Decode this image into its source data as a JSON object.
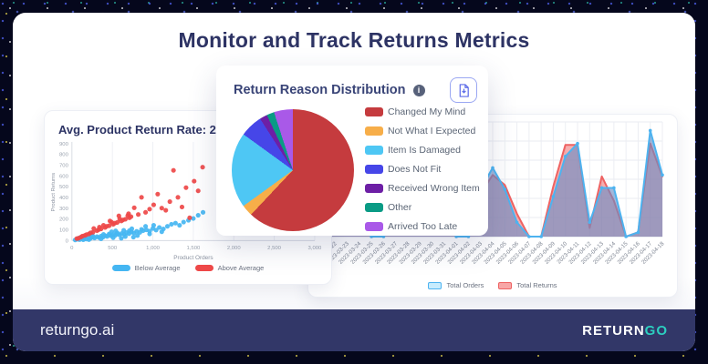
{
  "title": "Monitor and Track Returns Metrics",
  "footer": {
    "site": "returngo.ai",
    "brand_return": "RETURN",
    "brand_go": "GO",
    "brand_go_color": "#2ccfc0",
    "bar_color": "#323768"
  },
  "scatter_card": {
    "title": "Avg. Product Return Rate: 24.8%"
  },
  "pie_card": {
    "title": "Return Reason Distribution",
    "info_icon_glyph": "i"
  },
  "chart_data": [
    {
      "type": "scatter",
      "title": "Avg. Product Return Rate: 24.8%",
      "xlabel": "Product Orders",
      "ylabel": "Product Returns",
      "xlim": [
        0,
        3000
      ],
      "ylim": [
        0,
        900
      ],
      "xticks": [
        0,
        500,
        1000,
        1500,
        2000,
        2500,
        3000
      ],
      "xtick_labels": [
        "0",
        "500",
        "1,000",
        "1,500",
        "2,000",
        "2,500",
        "3,000"
      ],
      "yticks": [
        0,
        100,
        200,
        300,
        400,
        500,
        600,
        700,
        800,
        900
      ],
      "grid": "vertical-only",
      "legend_position": "bottom",
      "series": [
        {
          "name": "Below Average",
          "color": "#45b6f2",
          "points": [
            [
              40,
              6
            ],
            [
              70,
              12
            ],
            [
              95,
              9
            ],
            [
              120,
              18
            ],
            [
              150,
              22
            ],
            [
              175,
              14
            ],
            [
              205,
              26
            ],
            [
              230,
              20
            ],
            [
              255,
              32
            ],
            [
              280,
              24
            ],
            [
              310,
              36
            ],
            [
              335,
              28
            ],
            [
              360,
              42
            ],
            [
              385,
              32
            ],
            [
              410,
              46
            ],
            [
              435,
              38
            ],
            [
              460,
              52
            ],
            [
              485,
              44
            ],
            [
              510,
              56
            ],
            [
              535,
              48
            ],
            [
              560,
              62
            ],
            [
              585,
              54
            ],
            [
              615,
              66
            ],
            [
              645,
              58
            ],
            [
              675,
              74
            ],
            [
              705,
              64
            ],
            [
              735,
              80
            ],
            [
              765,
              70
            ],
            [
              800,
              86
            ],
            [
              840,
              76
            ],
            [
              880,
              92
            ],
            [
              920,
              100
            ],
            [
              960,
              88
            ],
            [
              1000,
              112
            ],
            [
              1040,
              98
            ],
            [
              1080,
              122
            ],
            [
              1130,
              108
            ],
            [
              1180,
              132
            ],
            [
              1230,
              152
            ],
            [
              1280,
              162
            ],
            [
              1330,
              142
            ],
            [
              1380,
              172
            ],
            [
              1440,
              188
            ],
            [
              1500,
              205
            ],
            [
              1560,
              235
            ],
            [
              1620,
              262
            ],
            [
              210,
              9
            ],
            [
              360,
              16
            ],
            [
              510,
              27
            ],
            [
              660,
              37
            ],
            [
              810,
              47
            ],
            [
              260,
              42
            ],
            [
              460,
              62
            ],
            [
              560,
              72
            ],
            [
              710,
              92
            ],
            [
              860,
              104
            ],
            [
              960,
              62
            ],
            [
              1110,
              82
            ],
            [
              610,
              22
            ],
            [
              760,
              32
            ],
            [
              910,
              132
            ],
            [
              1010,
              142
            ],
            [
              490,
              82
            ],
            [
              390,
              57
            ],
            [
              140,
              8
            ],
            [
              90,
              25
            ],
            [
              240,
              52
            ],
            [
              640,
              95
            ],
            [
              740,
              110
            ],
            [
              540,
              90
            ]
          ]
        },
        {
          "name": "Above Average",
          "color": "#ee4848",
          "points": [
            [
              60,
              18
            ],
            [
              110,
              32
            ],
            [
              160,
              48
            ],
            [
              210,
              62
            ],
            [
              260,
              78
            ],
            [
              310,
              92
            ],
            [
              360,
              108
            ],
            [
              410,
              122
            ],
            [
              460,
              138
            ],
            [
              510,
              152
            ],
            [
              560,
              168
            ],
            [
              610,
              182
            ],
            [
              660,
              198
            ],
            [
              710,
              212
            ],
            [
              130,
              42
            ],
            [
              230,
              72
            ],
            [
              330,
              102
            ],
            [
              430,
              132
            ],
            [
              530,
              162
            ],
            [
              630,
              192
            ],
            [
              730,
              222
            ],
            [
              390,
              142
            ],
            [
              490,
              172
            ],
            [
              590,
              202
            ],
            [
              690,
              232
            ],
            [
              270,
              112
            ],
            [
              470,
              182
            ],
            [
              770,
              305
            ],
            [
              820,
              242
            ],
            [
              860,
              402
            ],
            [
              910,
              262
            ],
            [
              960,
              292
            ],
            [
              1010,
              332
            ],
            [
              1060,
              432
            ],
            [
              1110,
              302
            ],
            [
              1160,
              282
            ],
            [
              1210,
              362
            ],
            [
              1255,
              652
            ],
            [
              1310,
              402
            ],
            [
              1360,
              312
            ],
            [
              1410,
              492
            ],
            [
              1455,
              212
            ],
            [
              1510,
              552
            ],
            [
              1560,
              462
            ],
            [
              1615,
              682
            ],
            [
              180,
              55
            ],
            [
              80,
              22
            ],
            [
              340,
              125
            ],
            [
              580,
              230
            ],
            [
              700,
              250
            ]
          ]
        }
      ]
    },
    {
      "type": "pie",
      "title": "Return Reason Distribution",
      "legend_position": "right",
      "slices": [
        {
          "label": "Changed My Mind",
          "value": 62,
          "color": "#c53b3e"
        },
        {
          "label": "Not What I Expected",
          "value": 3,
          "color": "#f7ae49"
        },
        {
          "label": "Item Is Damaged",
          "value": 20,
          "color": "#4ec7f4"
        },
        {
          "label": "Does Not Fit",
          "value": 6,
          "color": "#4646e8"
        },
        {
          "label": "Received Wrong Item",
          "value": 2,
          "color": "#6d1fa5"
        },
        {
          "label": "Other",
          "value": 2,
          "color": "#0a9b85"
        },
        {
          "label": "Arrived Too Late",
          "value": 5,
          "color": "#a959e8"
        }
      ]
    },
    {
      "type": "area",
      "x": [
        "2023-03-21",
        "2023-03-22",
        "2023-03-23",
        "2023-03-24",
        "2023-03-25",
        "2023-03-26",
        "2023-03-27",
        "2023-03-28",
        "2023-03-29",
        "2023-03-30",
        "2023-03-31",
        "2023-04-01",
        "2023-04-02",
        "2023-04-03",
        "2023-04-04",
        "2023-04-05",
        "2023-04-06",
        "2023-04-07",
        "2023-04-08",
        "2023-04-09",
        "2023-04-10",
        "2023-04-11",
        "2023-04-12",
        "2023-04-13",
        "2023-04-14",
        "2023-04-15",
        "2023-04-16",
        "2023-04-17",
        "2023-04-18"
      ],
      "ylim": [
        0,
        800
      ],
      "grid": true,
      "legend_position": "bottom",
      "series": [
        {
          "name": "Total Returns",
          "color": "#ee6262",
          "fill": "rgba(238,107,107,0.55)",
          "swatch_fill": "#f7a6a6",
          "markers": false,
          "values": [
            260,
            480,
            300,
            210,
            0,
            0,
            300,
            220,
            390,
            320,
            140,
            0,
            0,
            300,
            430,
            360,
            160,
            0,
            0,
            350,
            640,
            640,
            60,
            420,
            250,
            0,
            30,
            650,
            420
          ]
        },
        {
          "name": "Total Orders",
          "color": "#4db3f0",
          "fill": "rgba(104,141,198,0.62)",
          "swatch_fill": "#c8ecfd",
          "markers": true,
          "values": [
            320,
            450,
            380,
            200,
            0,
            0,
            290,
            260,
            440,
            310,
            150,
            0,
            0,
            330,
            480,
            330,
            100,
            0,
            0,
            280,
            560,
            650,
            100,
            340,
            340,
            0,
            30,
            740,
            430
          ]
        }
      ]
    }
  ]
}
